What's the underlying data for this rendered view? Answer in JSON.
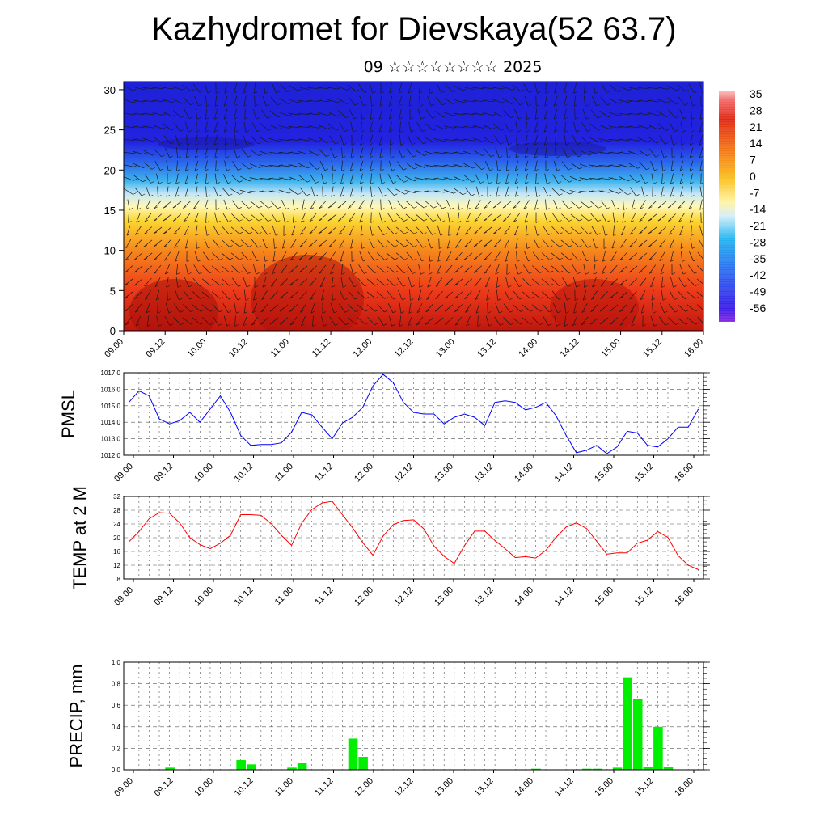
{
  "title": "Kazhydromet for Dievskaya(52 63.7)",
  "subtitle": "09 ☆☆☆☆☆☆☆☆ 2025",
  "time_labels": [
    "09.00",
    "09.12",
    "10.00",
    "10.12",
    "11.00",
    "11.12",
    "12.00",
    "12.12",
    "13.00",
    "13.12",
    "14.00",
    "14.12",
    "15.00",
    "15.12",
    "16.00"
  ],
  "colors": {
    "pmsl": "#0000ff",
    "temp": "#ff0000",
    "precip": "#00ee00",
    "grid": "#555555"
  },
  "chart_data": [
    {
      "type": "heatmap",
      "title": "",
      "xlabel": "",
      "ylabel": "",
      "ylim": [
        0,
        31
      ],
      "y_ticks": [
        0,
        5,
        10,
        15,
        20,
        25,
        30
      ],
      "x_ticks": [
        "09.00",
        "09.12",
        "10.00",
        "10.12",
        "11.00",
        "11.12",
        "12.00",
        "12.12",
        "13.00",
        "13.12",
        "14.00",
        "14.12",
        "15.00",
        "15.12",
        "16.00"
      ],
      "colorbar_labels": [
        "35",
        "28",
        "21",
        "14",
        "7",
        "0",
        "-7",
        "-14",
        "-21",
        "-28",
        "-35",
        "-42",
        "-49",
        "-56"
      ],
      "vertical_profile": [
        {
          "height": 0,
          "value": 26
        },
        {
          "height": 5,
          "value": 18
        },
        {
          "height": 10,
          "value": 10
        },
        {
          "height": 14,
          "value": 0
        },
        {
          "height": 17,
          "value": -14
        },
        {
          "height": 20,
          "value": -35
        },
        {
          "height": 23,
          "value": -52
        },
        {
          "height": 27,
          "value": -48
        },
        {
          "height": 31,
          "value": -44
        }
      ]
    },
    {
      "type": "line",
      "ylabel": "PMSL",
      "ylim": [
        1012.0,
        1017.0
      ],
      "y_ticks": [
        "1012.0",
        "1013.0",
        "1014.0",
        "1015.0",
        "1016.0",
        "1017.0"
      ],
      "x_ticks": [
        "09.00",
        "09.12",
        "10.00",
        "10.12",
        "11.00",
        "11.12",
        "12.00",
        "12.12",
        "13.00",
        "13.12",
        "14.00",
        "14.12",
        "15.00",
        "15.12",
        "16.00"
      ],
      "series": [
        {
          "values": [
            1015.2,
            1015.9,
            1015.6,
            1014.2,
            1013.9,
            1014.1,
            1014.6,
            1014.0,
            1014.8,
            1015.6,
            1014.6,
            1013.2,
            1012.6,
            1012.65,
            1012.65,
            1012.75,
            1013.4,
            1014.6,
            1014.45,
            1013.7,
            1013.0,
            1013.95,
            1014.3,
            1014.9,
            1016.2,
            1016.9,
            1016.4,
            1015.2,
            1014.6,
            1014.5,
            1014.5,
            1013.9,
            1014.3,
            1014.5,
            1014.3,
            1013.8,
            1015.2,
            1015.3,
            1015.2,
            1014.75,
            1014.9,
            1015.2,
            1014.4,
            1013.2,
            1012.15,
            1012.3,
            1012.6,
            1012.1,
            1012.5,
            1013.45,
            1013.35,
            1012.6,
            1012.5,
            1013.0,
            1013.7,
            1013.7,
            1014.8
          ]
        }
      ]
    },
    {
      "type": "line",
      "ylabel": "TEMP at 2 M",
      "ylim": [
        8,
        32
      ],
      "y_ticks": [
        "8",
        "12",
        "16",
        "20",
        "24",
        "28",
        "32"
      ],
      "x_ticks": [
        "09.00",
        "09.12",
        "10.00",
        "10.12",
        "11.00",
        "11.12",
        "12.00",
        "12.12",
        "13.00",
        "13.12",
        "14.00",
        "14.12",
        "15.00",
        "15.12",
        "16.00"
      ],
      "series": [
        {
          "values": [
            18.8,
            21.8,
            25.5,
            27.3,
            27.1,
            24.3,
            20.0,
            18.0,
            16.8,
            18.4,
            20.7,
            26.7,
            26.7,
            26.5,
            24.1,
            20.7,
            17.8,
            24.2,
            28.2,
            30.1,
            30.6,
            26.7,
            22.9,
            18.6,
            14.9,
            20.5,
            23.8,
            25.0,
            25.2,
            22.6,
            17.6,
            14.6,
            12.5,
            17.7,
            21.9,
            21.9,
            19.2,
            16.8,
            14.2,
            14.5,
            14.1,
            16.3,
            20.1,
            23.1,
            24.3,
            22.7,
            19.0,
            15.2,
            15.6,
            15.6,
            18.4,
            19.3,
            21.8,
            20.1,
            14.8,
            12.0,
            10.7
          ]
        }
      ]
    },
    {
      "type": "bar",
      "ylabel": "PRECIP, mm",
      "ylim": [
        0,
        1.0
      ],
      "y_ticks": [
        "0.0",
        "0.2",
        "0.4",
        "0.6",
        "0.8",
        "1.0"
      ],
      "x_ticks": [
        "09.00",
        "09.12",
        "10.00",
        "10.12",
        "11.00",
        "11.12",
        "12.00",
        "12.12",
        "13.00",
        "13.12",
        "14.00",
        "14.12",
        "15.00",
        "15.12",
        "16.00"
      ],
      "values": [
        0,
        0,
        0,
        0,
        0.02,
        0,
        0,
        0,
        0,
        0,
        0,
        0.09,
        0.05,
        0,
        0,
        0,
        0.02,
        0.06,
        0,
        0,
        0,
        0,
        0.29,
        0.12,
        0,
        0,
        0,
        0,
        0,
        0,
        0,
        0,
        0,
        0,
        0,
        0,
        0,
        0,
        0,
        0,
        0.01,
        0,
        0,
        0,
        0,
        0.01,
        0.01,
        0,
        0.02,
        0.86,
        0.66,
        0.03,
        0.4,
        0.03,
        0,
        0,
        0
      ]
    }
  ]
}
